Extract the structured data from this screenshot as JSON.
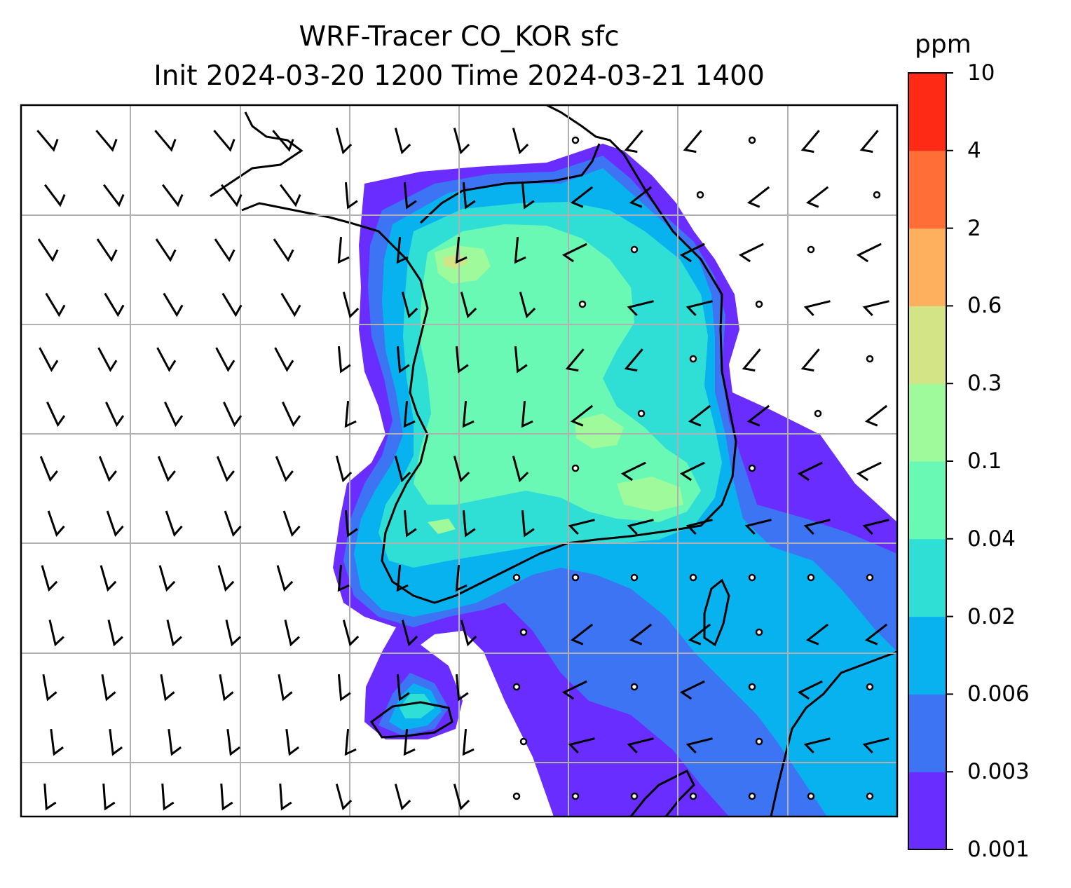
{
  "title": {
    "line1": "WRF-Tracer CO_KOR sfc",
    "line2": "Init 2024-03-20 1200 Time 2024-03-21 1400"
  },
  "colorbar": {
    "unit": "ppm",
    "levels": [
      "0.001",
      "0.003",
      "0.006",
      "0.02",
      "0.04",
      "0.1",
      "0.3",
      "0.6",
      "2",
      "4",
      "10"
    ],
    "colors": [
      "#6a2dff",
      "#3d74f4",
      "#08b2ee",
      "#2fdfd6",
      "#69f9b4",
      "#9efa9a",
      "#d2e486",
      "#feb05f",
      "#ff6e37",
      "#ff2a16"
    ]
  },
  "map": {
    "gridline_color": "#b0b0b0",
    "coastline_color": "#000000",
    "wind_barb_color": "#000000",
    "features": [
      "contour-fill",
      "coastlines",
      "gridlines",
      "wind-barbs"
    ]
  }
}
